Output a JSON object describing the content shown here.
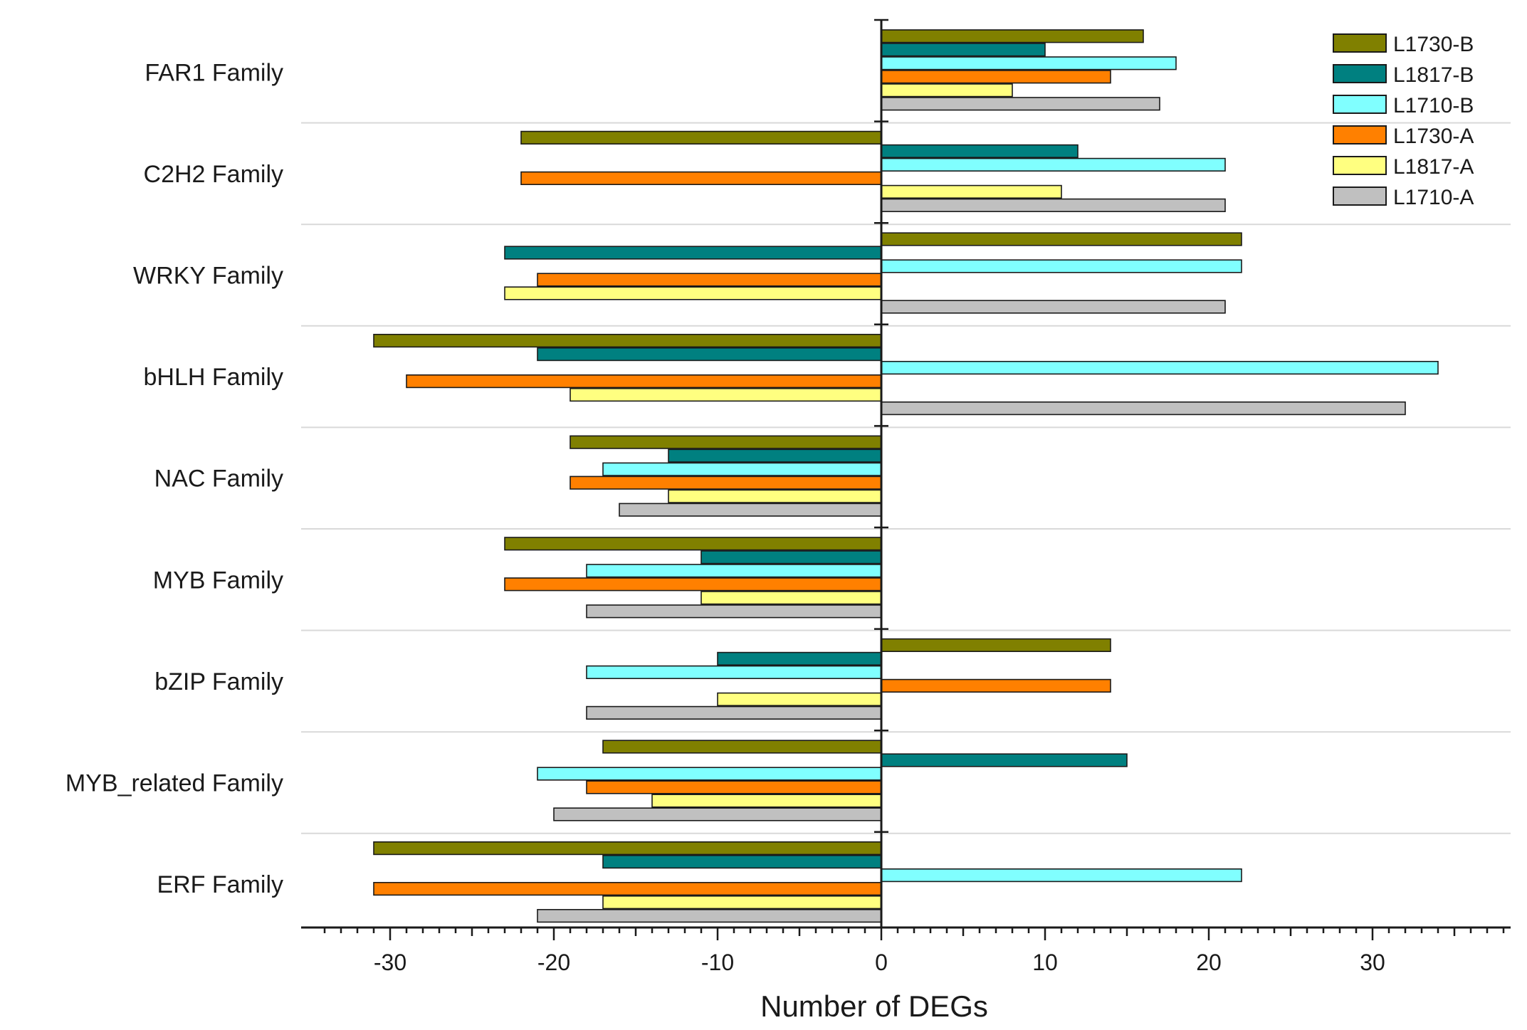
{
  "chart_data": {
    "type": "bar",
    "orientation": "horizontal",
    "title": "",
    "xlabel": "Number of DEGs",
    "ylabel": "",
    "xlim": [
      -35,
      38
    ],
    "xticks": [
      -30,
      -20,
      -10,
      0,
      10,
      20,
      30
    ],
    "xtick_labels": [
      "-30",
      "-20",
      "-10",
      "0",
      "10",
      "20",
      "30"
    ],
    "grid": false,
    "legend_position": "top-right",
    "categories": [
      "FAR1 Family",
      "C2H2 Family",
      "WRKY Family",
      "bHLH Family",
      "NAC Family",
      "MYB Family",
      "bZIP Family",
      "MYB_related Family",
      "ERF Family"
    ],
    "series": [
      {
        "name": "L1730-B",
        "color": "#808000",
        "values": [
          16,
          -22,
          22,
          -31,
          -19,
          -23,
          14,
          -17,
          -31
        ]
      },
      {
        "name": "L1817-B",
        "color": "#008080",
        "values": [
          10,
          12,
          -23,
          -21,
          -13,
          -11,
          -10,
          15,
          -17
        ]
      },
      {
        "name": "L1710-B",
        "color": "#80FFFF",
        "values": [
          18,
          21,
          22,
          34,
          -17,
          -18,
          -18,
          -21,
          22
        ]
      },
      {
        "name": "L1730-A",
        "color": "#FF8000",
        "values": [
          14,
          -22,
          -21,
          -29,
          -19,
          -23,
          14,
          -18,
          -31
        ]
      },
      {
        "name": "L1817-A",
        "color": "#FFFF80",
        "values": [
          8,
          11,
          -23,
          -19,
          -13,
          -11,
          -10,
          -14,
          -17
        ]
      },
      {
        "name": "L1710-A",
        "color": "#C0C0C0",
        "values": [
          17,
          21,
          21,
          32,
          -16,
          -18,
          -18,
          -20,
          -21
        ]
      }
    ]
  }
}
